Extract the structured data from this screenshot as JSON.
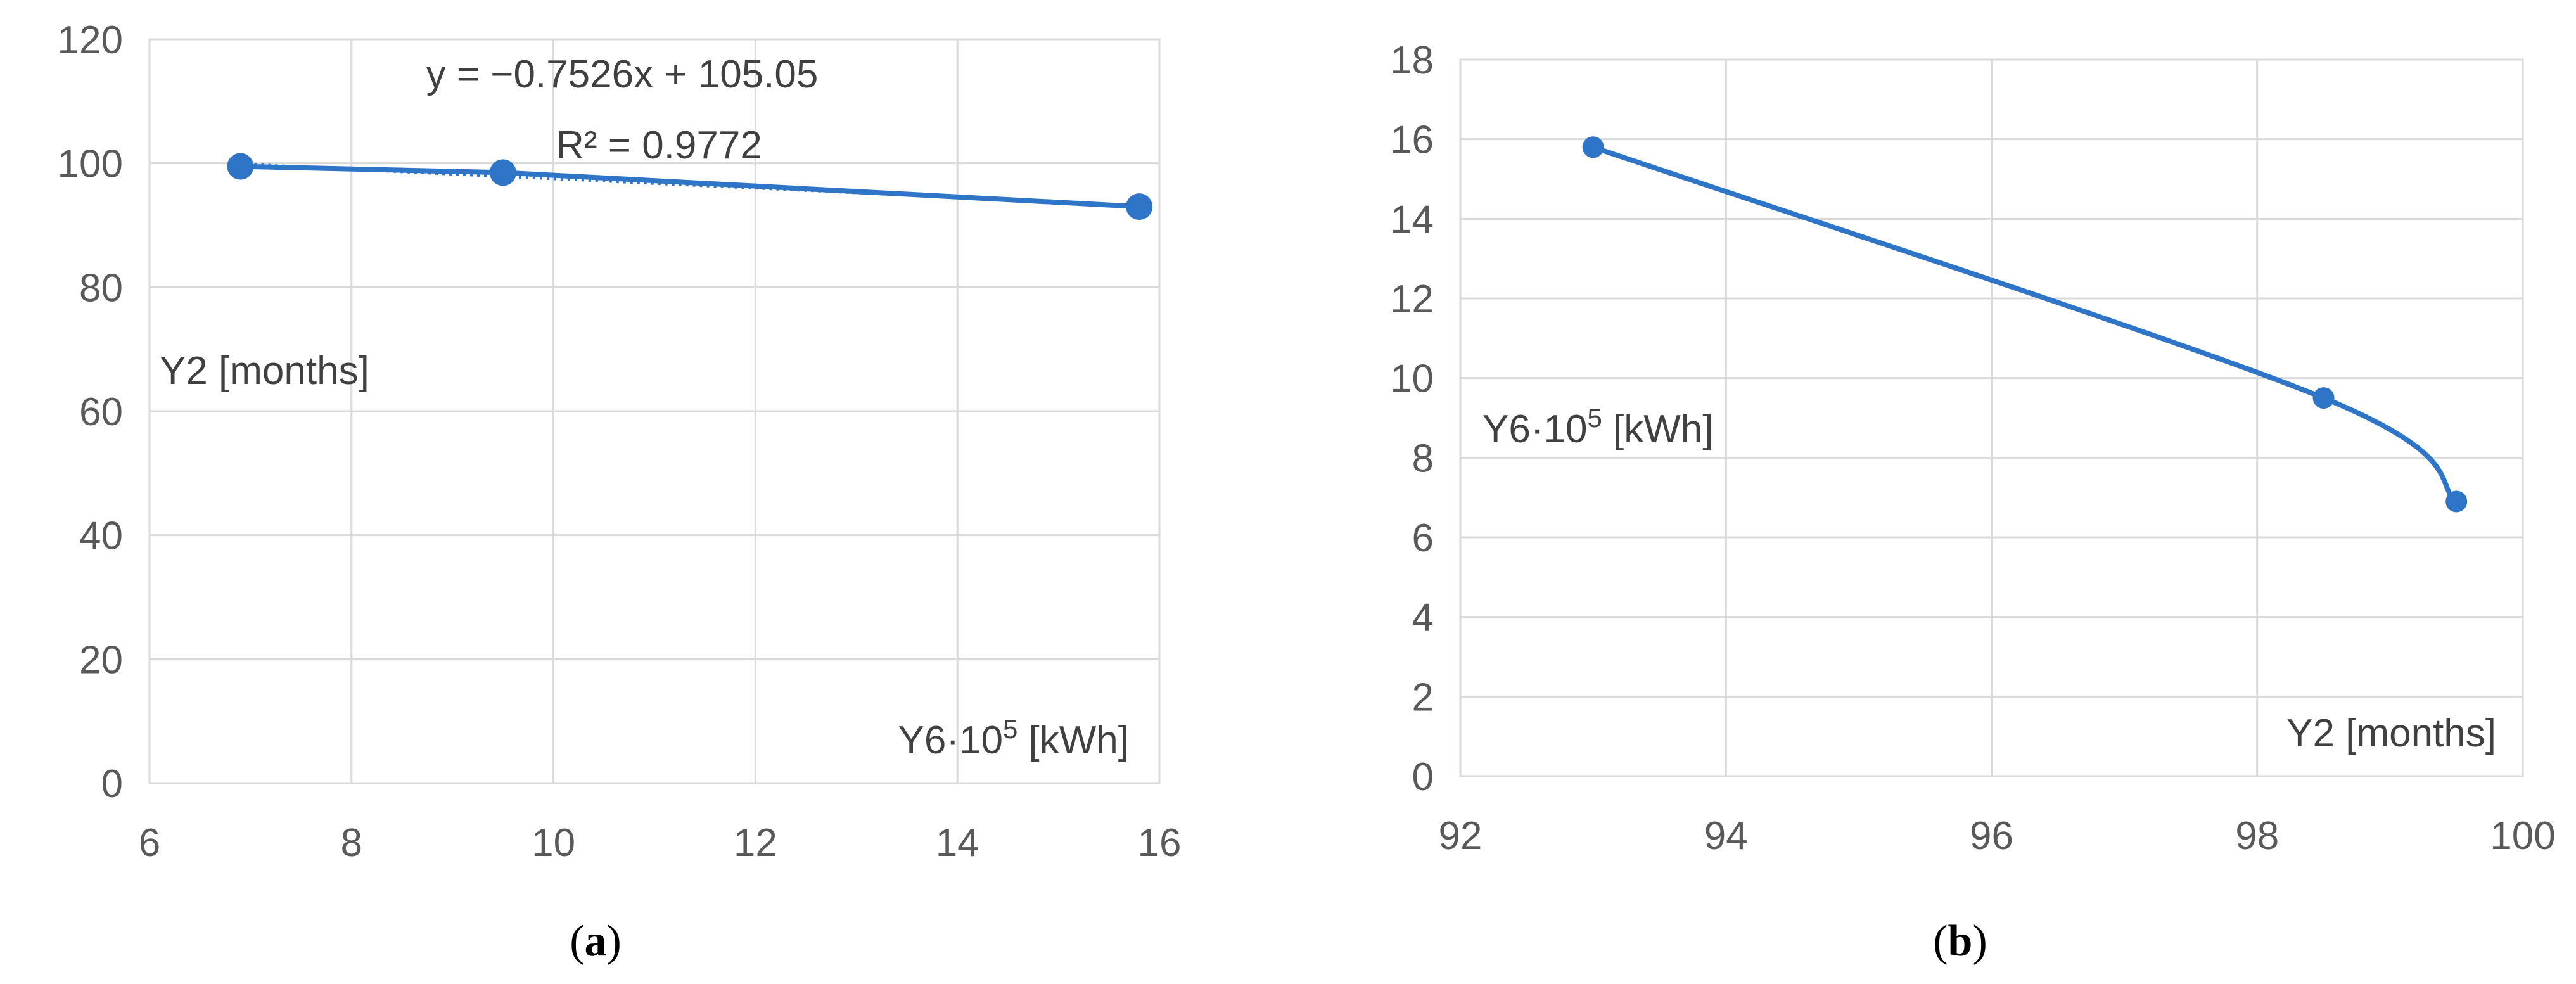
{
  "figure": {
    "panels": [
      {
        "label_open": "(",
        "label_letter": "a",
        "label_close": ")"
      },
      {
        "label_open": "(",
        "label_letter": "b",
        "label_close": ")"
      }
    ]
  },
  "chart_data": [
    {
      "type": "scatter",
      "title": "",
      "xlabel_base": "Y6·10",
      "xlabel_sup": "5",
      "xlabel_unit": " [kWh]",
      "ylabel": "Y2 [months]",
      "xlim": [
        6,
        16
      ],
      "ylim": [
        0,
        120
      ],
      "xticks": [
        6,
        8,
        10,
        12,
        14,
        16
      ],
      "yticks": [
        0,
        20,
        40,
        60,
        80,
        100,
        120
      ],
      "grid": true,
      "series": [
        {
          "x": [
            6.9,
            9.5,
            15.8
          ],
          "y": [
            99.5,
            98.5,
            93.0
          ]
        }
      ],
      "trendline": {
        "slope": -0.7526,
        "intercept": 105.05,
        "equation": "y = −0.7526x + 105.05",
        "r2": "R² = 0.9772"
      },
      "colors": {
        "series": "#2e75c8",
        "grid": "#d9d9d9"
      }
    },
    {
      "type": "line",
      "title": "",
      "xlabel": "Y2 [months]",
      "ylabel_base": "Y6·10",
      "ylabel_sup": "5",
      "ylabel_unit": " [kWh]",
      "xlim": [
        92,
        100
      ],
      "ylim": [
        0,
        18
      ],
      "xticks": [
        92,
        94,
        96,
        98,
        100
      ],
      "yticks": [
        0,
        2,
        4,
        6,
        8,
        10,
        12,
        14,
        16,
        18
      ],
      "grid": true,
      "series": [
        {
          "x": [
            93.0,
            98.5,
            99.5
          ],
          "y": [
            15.8,
            9.5,
            6.9
          ]
        }
      ],
      "colors": {
        "series": "#2e75c8",
        "grid": "#d9d9d9"
      }
    }
  ]
}
